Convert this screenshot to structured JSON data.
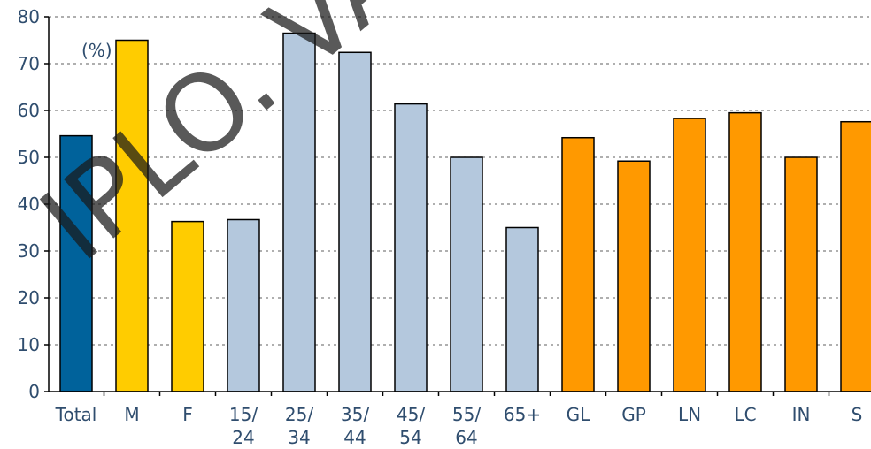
{
  "chart_data": {
    "type": "bar",
    "unit_label": "(%)",
    "ylim": [
      0,
      80
    ],
    "y_ticks": [
      "0",
      "10",
      "20",
      "30",
      "40",
      "50",
      "60",
      "70",
      "80"
    ],
    "grid": true,
    "categories": [
      [
        "Total"
      ],
      [
        "M"
      ],
      [
        "F"
      ],
      [
        "15/",
        "24"
      ],
      [
        "25/",
        "34"
      ],
      [
        "35/",
        "44"
      ],
      [
        "45/",
        "54"
      ],
      [
        "55/",
        "64"
      ],
      [
        "65+"
      ],
      [
        "GL"
      ],
      [
        "GP"
      ],
      [
        "LN"
      ],
      [
        "LC"
      ],
      [
        "IN"
      ],
      [
        "S"
      ]
    ],
    "values": [
      54.6,
      75.0,
      36.3,
      36.7,
      76.5,
      72.4,
      61.4,
      50.0,
      35.0,
      54.2,
      49.2,
      58.3,
      59.5,
      50.0,
      57.6
    ],
    "groups": [
      "total",
      "sex",
      "sex",
      "age",
      "age",
      "age",
      "age",
      "age",
      "age",
      "region",
      "region",
      "region",
      "region",
      "region",
      "region"
    ],
    "colors": {
      "total": "#00629b",
      "sex": "#ffcc00",
      "age": "#b4c8dd",
      "region": "#ff9900"
    }
  },
  "watermark": {
    "text": "IPLO. VAL"
  }
}
